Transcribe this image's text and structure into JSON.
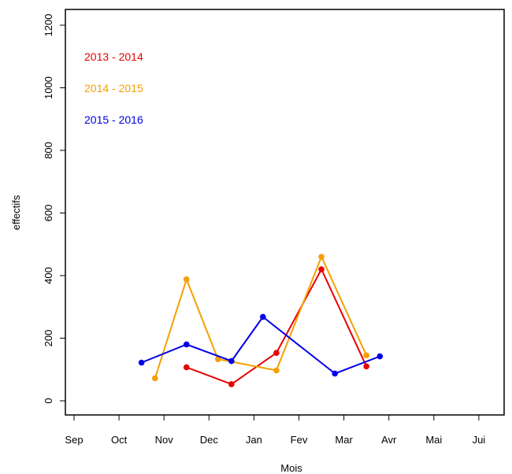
{
  "chart_data": {
    "type": "line",
    "xlabel": "Mois",
    "ylabel": "effectifs",
    "categories": [
      "Sep",
      "Oct",
      "Nov",
      "Dec",
      "Jan",
      "Fev",
      "Mar",
      "Avr",
      "Mai",
      "Jui"
    ],
    "xlim": [
      0,
      9
    ],
    "ylim": [
      0,
      1200
    ],
    "yticks": [
      0,
      200,
      400,
      600,
      800,
      1000,
      1200
    ],
    "legend_position": "top-left",
    "grid": false,
    "series": [
      {
        "name": "2013 - 2014",
        "color": "#e60000",
        "x": [
          2.5,
          3.5,
          4.5,
          5.5,
          6.5
        ],
        "y": [
          107,
          53,
          153,
          420,
          110
        ]
      },
      {
        "name": "2014 - 2015",
        "color": "#f5a000",
        "x": [
          1.8,
          2.5,
          3.2,
          4.5,
          5.5,
          6.5
        ],
        "y": [
          72,
          388,
          133,
          97,
          460,
          145
        ]
      },
      {
        "name": "2015 - 2016",
        "color": "#0000e6",
        "x": [
          1.5,
          2.5,
          3.5,
          4.2,
          5.8,
          6.8
        ],
        "y": [
          122,
          180,
          127,
          268,
          87,
          142
        ]
      }
    ]
  }
}
